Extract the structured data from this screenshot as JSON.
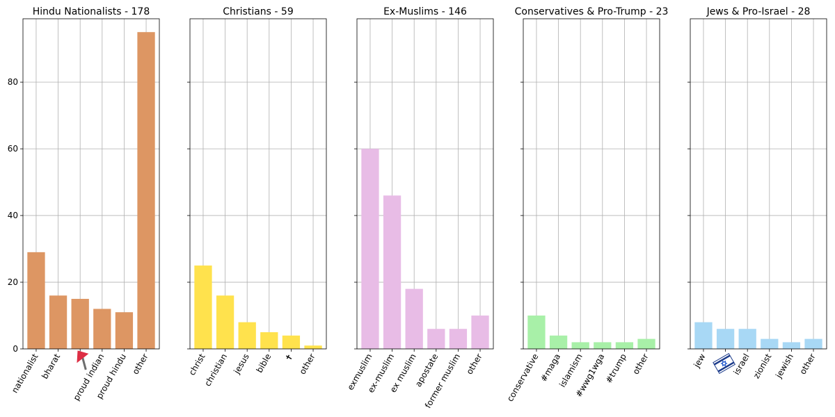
{
  "chart_data": [
    {
      "type": "bar",
      "title": "Hindu Nationalists - 178",
      "categories": [
        "nationalist",
        "bharat",
        "flag-emoji",
        "proud indian",
        "proud hindu",
        "other"
      ],
      "category_icons": {
        "flag-emoji": "red-flag-icon"
      },
      "values": [
        29,
        16,
        15,
        12,
        11,
        95
      ],
      "color": "#DD9663",
      "ylim": [
        0,
        99
      ],
      "yticks": [
        0,
        20,
        40,
        60,
        80
      ],
      "grid": true
    },
    {
      "type": "bar",
      "title": "Christians - 59",
      "categories": [
        "christ",
        "christian",
        "jesus",
        "bible",
        "✝",
        "other"
      ],
      "values": [
        25,
        16,
        8,
        5,
        4,
        1
      ],
      "color": "#FFE24D",
      "ylim": [
        0,
        99
      ],
      "yticks": [
        0,
        20,
        40,
        60,
        80
      ],
      "grid": true
    },
    {
      "type": "bar",
      "title": "Ex-Muslims - 146",
      "categories": [
        "exmuslim",
        "ex-muslim",
        "ex muslim",
        "apostate",
        "former muslim",
        "other"
      ],
      "values": [
        60,
        46,
        18,
        6,
        6,
        10
      ],
      "color": "#E8BCE6",
      "ylim": [
        0,
        99
      ],
      "yticks": [
        0,
        20,
        40,
        60,
        80
      ],
      "grid": true
    },
    {
      "type": "bar",
      "title": "Conservatives & Pro-Trump - 23",
      "categories": [
        "conservative",
        "#maga",
        "islamism",
        "#wwg1wga",
        "#trump",
        "other"
      ],
      "values": [
        10,
        4,
        2,
        2,
        2,
        3
      ],
      "color": "#A8F0A8",
      "ylim": [
        0,
        99
      ],
      "yticks": [
        0,
        20,
        40,
        60,
        80
      ],
      "grid": true
    },
    {
      "type": "bar",
      "title": "Jews & Pro-Israel - 28",
      "categories": [
        "jew",
        "israel-flag-emoji",
        "israel",
        "zionist",
        "jewish",
        "other"
      ],
      "category_icons": {
        "israel-flag-emoji": "israel-flag-icon"
      },
      "values": [
        8,
        6,
        6,
        3,
        2,
        3
      ],
      "color": "#A8D8F5",
      "ylim": [
        0,
        99
      ],
      "yticks": [
        0,
        20,
        40,
        60,
        80
      ],
      "grid": true
    }
  ]
}
